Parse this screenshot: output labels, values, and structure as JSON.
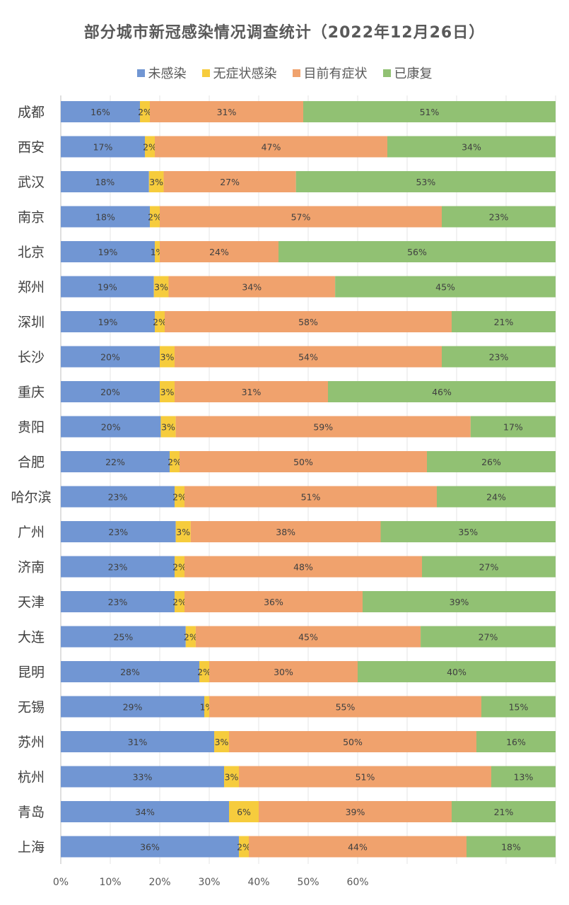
{
  "chart_data": {
    "type": "bar",
    "orientation": "horizontal",
    "stacked": "100%",
    "title": "部分城市新冠感染情况调查统计（2022年12月26日）",
    "xlabel": "",
    "ylabel": "",
    "xlim": [
      0,
      100
    ],
    "x_tick_labels": [
      "0%",
      "10%",
      "20%",
      "30%",
      "40%",
      "50%",
      "60%"
    ],
    "grid": true,
    "legend_position": "top",
    "categories": [
      "成都",
      "西安",
      "武汉",
      "南京",
      "北京",
      "郑州",
      "深圳",
      "长沙",
      "重庆",
      "贵阳",
      "合肥",
      "哈尔滨",
      "广州",
      "济南",
      "天津",
      "大连",
      "昆明",
      "无锡",
      "苏州",
      "杭州",
      "青岛",
      "上海"
    ],
    "series": [
      {
        "name": "未感染",
        "color": "#7196d3",
        "values": [
          16,
          17,
          18,
          18,
          19,
          19,
          19,
          20,
          20,
          20,
          22,
          23,
          23,
          23,
          23,
          25,
          28,
          29,
          31,
          33,
          34,
          36
        ]
      },
      {
        "name": "无症状感染",
        "color": "#f6cc3d",
        "values": [
          2,
          2,
          3,
          2,
          1,
          3,
          2,
          3,
          3,
          3,
          2,
          2,
          3,
          2,
          2,
          2,
          2,
          1,
          3,
          3,
          6,
          2
        ]
      },
      {
        "name": "目前有症状",
        "color": "#f0a26d",
        "values": [
          31,
          47,
          27,
          57,
          24,
          34,
          58,
          54,
          31,
          59,
          50,
          51,
          38,
          48,
          36,
          45,
          30,
          55,
          50,
          51,
          39,
          44
        ]
      },
      {
        "name": "已康复",
        "color": "#91c173",
        "values": [
          51,
          34,
          53,
          23,
          56,
          45,
          21,
          23,
          46,
          17,
          26,
          24,
          35,
          27,
          39,
          27,
          40,
          15,
          16,
          13,
          21,
          18
        ]
      }
    ]
  }
}
